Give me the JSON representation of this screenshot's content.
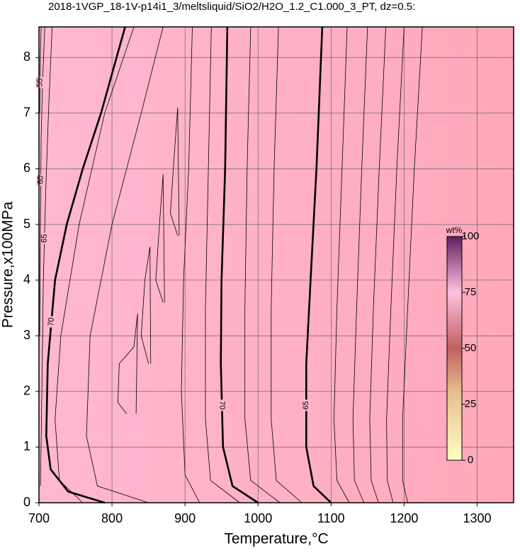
{
  "chart_data": {
    "type": "contour",
    "title": "2018-1VGP_18-1V-p14i1_3/meltsliquid/SiO2/H2O_1.2_C1.000_3_PT, dz=0.5:",
    "xlabel": "Temperature,°C",
    "ylabel": "Pressure,x100MPa",
    "xlim": [
      700,
      1350
    ],
    "ylim": [
      0,
      8.55
    ],
    "xticks": [
      700,
      800,
      900,
      1000,
      1100,
      1200,
      1300
    ],
    "yticks": [
      0,
      1,
      2,
      3,
      4,
      5,
      6,
      7,
      8
    ],
    "grid": true,
    "series": [
      {
        "name": "70",
        "bold": true,
        "x": [
          790,
          740,
          716,
          710,
          712,
          722,
          738,
          760,
          785,
          818
        ],
        "y": [
          0,
          0.2,
          0.6,
          1.2,
          2.5,
          4,
          5,
          6,
          7,
          8.55
        ]
      },
      {
        "name": "70",
        "bold": true,
        "x": [
          1000,
          965,
          952,
          949,
          950,
          955,
          958
        ],
        "y": [
          0,
          0.3,
          1,
          2.5,
          4,
          6,
          8.55
        ]
      },
      {
        "name": "65",
        "bold": true,
        "x": [
          1100,
          1076,
          1066,
          1066,
          1072,
          1080,
          1088
        ],
        "y": [
          0,
          0.3,
          1,
          2.5,
          4,
          6,
          8.55
        ]
      },
      {
        "name": "65",
        "bold": false,
        "x": [
          702,
          704,
          706,
          709,
          713,
          718
        ],
        "y": [
          0.3,
          2,
          4,
          5.5,
          7,
          8.55
        ]
      },
      {
        "name": "60",
        "bold": false,
        "x": [
          701,
          702,
          703,
          705,
          708
        ],
        "y": [
          3,
          5,
          6.6,
          7.6,
          8.55
        ]
      },
      {
        "name": "55",
        "bold": false,
        "x": [
          701,
          702,
          703
        ],
        "y": [
          7,
          8.1,
          8.55
        ]
      },
      {
        "x": [
          760,
          728,
          722,
          730,
          755,
          790,
          830
        ],
        "y": [
          0,
          0.4,
          1.5,
          3,
          5,
          7,
          8.55
        ]
      },
      {
        "x": [
          850,
          780,
          765,
          770,
          800,
          840,
          870
        ],
        "y": [
          0,
          0.3,
          1.2,
          3,
          5,
          7,
          8.55
        ]
      },
      {
        "x": [
          820,
          808,
          810,
          830,
          835,
          833
        ],
        "y": [
          1.6,
          1.8,
          2.5,
          2.8,
          3.4,
          1.6
        ]
      },
      {
        "x": [
          850,
          840,
          845,
          852,
          853
        ],
        "y": [
          2.5,
          3,
          4,
          4.6,
          2.5
        ]
      },
      {
        "x": [
          870,
          860,
          865,
          870,
          872
        ],
        "y": [
          3.6,
          4,
          5,
          5.9,
          3.6
        ]
      },
      {
        "x": [
          890,
          880,
          885,
          890,
          892
        ],
        "y": [
          4.8,
          5.2,
          6.2,
          7.1,
          4.8
        ]
      },
      {
        "x": [
          920,
          900,
          895,
          898,
          905,
          910
        ],
        "y": [
          0,
          0.5,
          2,
          4,
          6,
          8.55
        ]
      },
      {
        "x": [
          975,
          935,
          928,
          928,
          932,
          936
        ],
        "y": [
          0,
          0.4,
          1.5,
          3.5,
          6,
          8.55
        ]
      },
      {
        "x": [
          1030,
          990,
          982,
          982,
          985,
          990
        ],
        "y": [
          0,
          0.4,
          1.5,
          3.5,
          6,
          8.55
        ]
      },
      {
        "x": [
          1060,
          1025,
          1018,
          1018,
          1022,
          1028
        ],
        "y": [
          0,
          0.4,
          1.5,
          3.5,
          6,
          8.55
        ]
      },
      {
        "x": [
          1125,
          1108,
          1104,
          1108,
          1115,
          1122
        ],
        "y": [
          0,
          0.4,
          1.5,
          3.5,
          6,
          8.55
        ]
      },
      {
        "x": [
          1145,
          1132,
          1130,
          1135,
          1142,
          1150
        ],
        "y": [
          0,
          0.4,
          1.5,
          3.5,
          6,
          8.55
        ]
      },
      {
        "x": [
          1165,
          1155,
          1153,
          1158,
          1166,
          1175
        ],
        "y": [
          0,
          0.4,
          1.5,
          3.5,
          6,
          8.55
        ]
      },
      {
        "x": [
          1185,
          1177,
          1176,
          1182,
          1190,
          1200
        ],
        "y": [
          0,
          0.4,
          1.5,
          3.5,
          6,
          8.55
        ]
      },
      {
        "x": [
          1205,
          1198,
          1198,
          1205,
          1214,
          1225
        ],
        "y": [
          0,
          0.4,
          1.5,
          3.5,
          6,
          8.55
        ]
      }
    ],
    "colorbar": {
      "label": "wt%",
      "lim": [
        0,
        100
      ],
      "ticks": [
        0,
        25,
        50,
        75,
        100
      ]
    }
  }
}
